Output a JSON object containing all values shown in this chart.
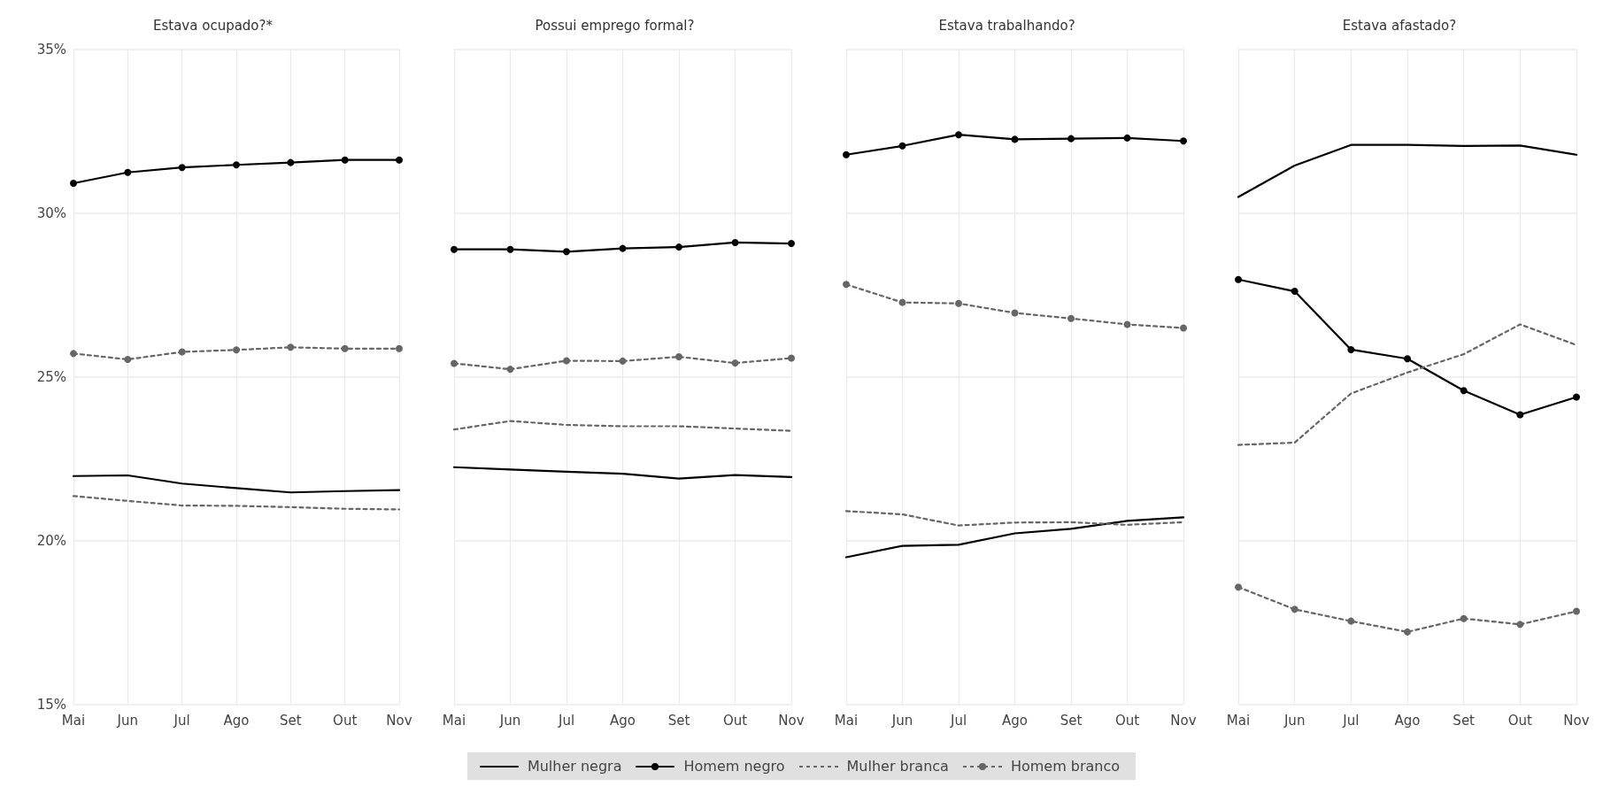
{
  "chart_data": [
    {
      "type": "line",
      "title": "Estava ocupado?*",
      "categories": [
        "Mai",
        "Jun",
        "Jul",
        "Ago",
        "Set",
        "Out",
        "Nov"
      ],
      "ylim": [
        15,
        35
      ],
      "yticks": [
        {
          "value": 15,
          "label": "15%"
        },
        {
          "value": 20,
          "label": "20%"
        },
        {
          "value": 25,
          "label": "25%"
        },
        {
          "value": 30,
          "label": "30%"
        },
        {
          "value": 35,
          "label": "35%"
        }
      ],
      "grid": true,
      "legend": "bottom",
      "series": [
        {
          "name": "Mulher negra",
          "color": "#000000",
          "marker": "none",
          "line_style": "solid",
          "values": [
            21.98,
            22.0,
            21.75,
            21.61,
            21.48,
            21.52,
            21.55
          ]
        },
        {
          "name": "Homem negro",
          "color": "#000000",
          "marker": "circle",
          "line_style": "solid",
          "values": [
            30.92,
            31.25,
            31.4,
            31.48,
            31.55,
            31.63,
            31.63
          ]
        },
        {
          "name": "Mulher branca",
          "color": "#666666",
          "marker": "none",
          "line_style": "dashed",
          "values": [
            21.37,
            21.22,
            21.08,
            21.07,
            21.03,
            20.98,
            20.96
          ]
        },
        {
          "name": "Homem branco",
          "color": "#666666",
          "marker": "circle",
          "line_style": "dashed",
          "values": [
            25.72,
            25.54,
            25.77,
            25.83,
            25.91,
            25.87,
            25.87
          ]
        }
      ]
    },
    {
      "type": "line",
      "title": "Possui emprego formal?",
      "categories": [
        "Mai",
        "Jun",
        "Jul",
        "Ago",
        "Set",
        "Out",
        "Nov"
      ],
      "ylim": [
        15,
        35
      ],
      "yticks": [
        15,
        20,
        25,
        30,
        35
      ],
      "grid": true,
      "tick_labels": "x",
      "series": [
        {
          "color": "#000000",
          "marker": "none",
          "line_style": "solid",
          "values": [
            22.25,
            22.18,
            22.11,
            22.05,
            21.9,
            22.01,
            21.95
          ]
        },
        {
          "color": "#000000",
          "marker": "circle",
          "line_style": "solid",
          "values": [
            28.9,
            28.9,
            28.83,
            28.93,
            28.97,
            29.11,
            29.08
          ]
        },
        {
          "color": "#666666",
          "marker": "none",
          "line_style": "dashed",
          "values": [
            23.4,
            23.66,
            23.54,
            23.5,
            23.5,
            23.43,
            23.36
          ]
        },
        {
          "color": "#666666",
          "marker": "circle",
          "line_style": "dashed",
          "values": [
            25.42,
            25.24,
            25.5,
            25.49,
            25.62,
            25.43,
            25.58
          ]
        }
      ]
    },
    {
      "type": "line",
      "title": "Estava trabalhando?",
      "categories": [
        "Mai",
        "Jun",
        "Jul",
        "Ago",
        "Set",
        "Out",
        "Nov"
      ],
      "ylim": [
        15,
        35
      ],
      "yticks": [
        15,
        20,
        25,
        30,
        35
      ],
      "grid": true,
      "tick_labels": "x",
      "series": [
        {
          "color": "#000000",
          "marker": "none",
          "line_style": "solid",
          "values": [
            19.5,
            19.85,
            19.88,
            20.23,
            20.37,
            20.61,
            20.72
          ]
        },
        {
          "color": "#000000",
          "marker": "circle",
          "line_style": "solid",
          "values": [
            31.79,
            32.06,
            32.4,
            32.26,
            32.28,
            32.3,
            32.21
          ]
        },
        {
          "color": "#666666",
          "marker": "none",
          "line_style": "dashed",
          "values": [
            20.91,
            20.81,
            20.47,
            20.56,
            20.57,
            20.49,
            20.57
          ]
        },
        {
          "color": "#666666",
          "marker": "circle",
          "line_style": "dashed",
          "values": [
            27.83,
            27.28,
            27.25,
            26.96,
            26.79,
            26.61,
            26.5
          ]
        }
      ]
    },
    {
      "type": "line",
      "title": "Estava afastado?",
      "categories": [
        "Mai",
        "Jun",
        "Jul",
        "Ago",
        "Set",
        "Out",
        "Nov"
      ],
      "ylim": [
        15,
        35
      ],
      "yticks": [
        15,
        20,
        25,
        30,
        35
      ],
      "grid": true,
      "tick_labels": "x",
      "series": [
        {
          "color": "#000000",
          "marker": "none",
          "line_style": "solid",
          "values": [
            30.5,
            31.46,
            32.09,
            32.09,
            32.06,
            32.07,
            31.79
          ]
        },
        {
          "color": "#000000",
          "marker": "circle",
          "line_style": "solid",
          "values": [
            27.98,
            27.62,
            25.84,
            25.56,
            24.59,
            23.85,
            24.39
          ]
        },
        {
          "color": "#666666",
          "marker": "none",
          "line_style": "dashed",
          "values": [
            22.93,
            23.0,
            24.5,
            25.14,
            25.7,
            26.61,
            25.98
          ]
        },
        {
          "color": "#666666",
          "marker": "circle",
          "line_style": "dashed",
          "values": [
            18.59,
            17.91,
            17.55,
            17.22,
            17.63,
            17.45,
            17.85
          ]
        }
      ]
    }
  ]
}
